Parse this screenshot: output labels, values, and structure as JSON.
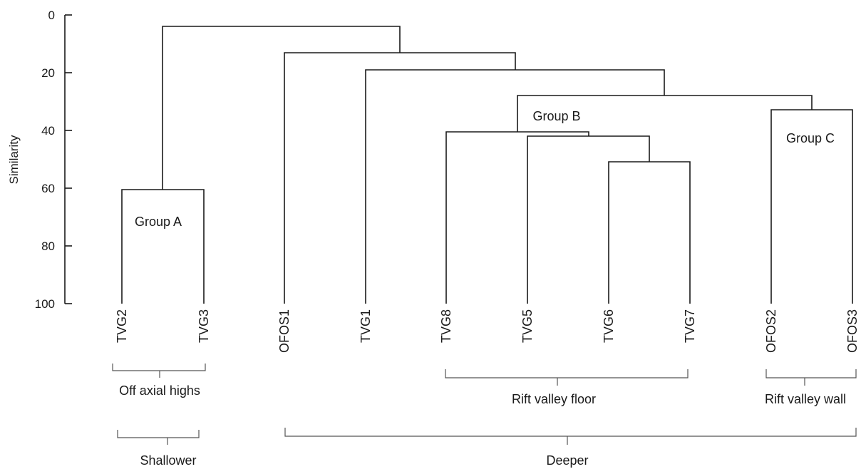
{
  "chart_data": {
    "type": "dendrogram",
    "ylabel": "Similarity",
    "ylim": [
      0,
      100
    ],
    "yticks": [
      "0",
      "20",
      "40",
      "60",
      "80",
      "100"
    ],
    "leaves": [
      "TVG2",
      "TVG3",
      "OFOS1",
      "TVG1",
      "TVG8",
      "TVG5",
      "TVG6",
      "TVG7",
      "OFOS2",
      "OFOS3"
    ],
    "merges": [
      {
        "left": "TVG6",
        "right": "TVG7",
        "similarity": 51
      },
      {
        "left": "TVG5",
        "right": "TVG6+TVG7",
        "similarity": 42
      },
      {
        "left": "TVG8",
        "right": "TVG5+TVG6+TVG7",
        "similarity": 41
      },
      {
        "left": "OFOS2",
        "right": "OFOS3",
        "similarity": 33
      },
      {
        "left": "Group B",
        "right": "Group C",
        "similarity": 28
      },
      {
        "left": "TVG1",
        "right": "Group B+Group C",
        "similarity": 19
      },
      {
        "left": "OFOS1",
        "right": "TVG1+Group B+Group C",
        "similarity": 13
      },
      {
        "left": "TVG2",
        "right": "TVG3",
        "similarity": 61
      },
      {
        "left": "Group A",
        "right": "OFOS1+TVG1+Group B+Group C",
        "similarity": 4
      }
    ],
    "groups": [
      "Group A",
      "Group B",
      "Group C"
    ],
    "brackets_level1": [
      "Off axial highs",
      "Rift valley floor",
      "Rift valley wall"
    ],
    "brackets_level2": [
      "Shallower",
      "Deeper"
    ]
  }
}
